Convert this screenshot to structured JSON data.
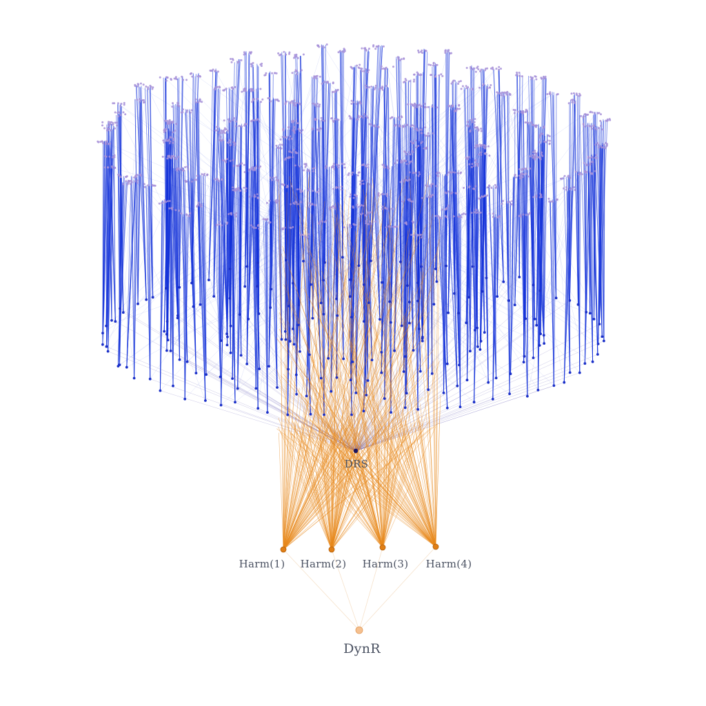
{
  "graph": {
    "type": "hierarchical-network",
    "nodes": {
      "root": {
        "label": "DynR",
        "color": "#f5c08f"
      },
      "middle": [
        {
          "label": "Harm(1)",
          "color": "#e07f16"
        },
        {
          "label": "Harm(2)",
          "color": "#e07f16"
        },
        {
          "label": "Harm(3)",
          "color": "#e07f16"
        },
        {
          "label": "Harm(4)",
          "color": "#e07f16"
        }
      ],
      "hub": {
        "label": "DRS",
        "color": "#1a1560"
      }
    },
    "colors": {
      "cluster_edge": "#1030d8",
      "cluster_node": "#1a2fc8",
      "leaf_node": "#a791d8",
      "harm_edge": "#e8891c",
      "root_edge": "#f3d9bd",
      "hub_edge": "#5a4fb0"
    }
  }
}
